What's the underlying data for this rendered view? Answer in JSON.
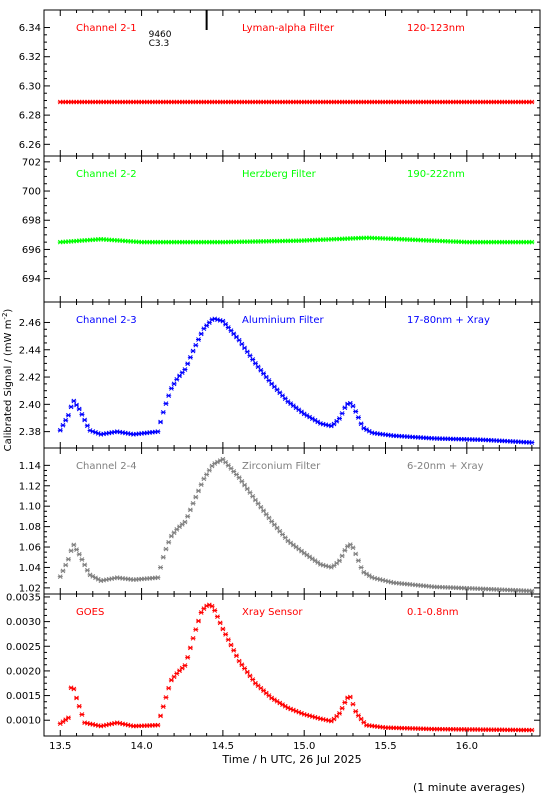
{
  "figure": {
    "ylabel_main": "Calibrated Signal / (mW m",
    "ylabel_sup": "-2",
    "ylabel_close": ")",
    "xlabel": "Time / h UTC, 26 Jul 2025",
    "footnote": "(1 minute averages)"
  },
  "chart_data": [
    {
      "type": "scatter",
      "label_left": "Channel 2-1",
      "label_center": "Lyman-alpha Filter",
      "label_right": "120-123nm",
      "color": "#ff0000",
      "ylim": [
        6.252,
        6.352
      ],
      "yticks": [
        6.26,
        6.28,
        6.3,
        6.32,
        6.34
      ],
      "yticklabels": [
        "6.26",
        "6.28",
        "6.30",
        "6.32",
        "6.34"
      ],
      "annotation": {
        "x": 14.4,
        "lines": [
          "9460",
          "C3.3"
        ]
      },
      "x": [
        13.5,
        16.4
      ],
      "y": [
        6.289,
        6.289
      ]
    },
    {
      "type": "scatter",
      "label_left": "Channel 2-2",
      "label_center": "Herzberg Filter",
      "label_right": "190-222nm",
      "color": "#00ff00",
      "ylim": [
        692.4,
        702.4
      ],
      "yticks": [
        694,
        696,
        698,
        700,
        702
      ],
      "yticklabels": [
        "694",
        "696",
        "698",
        "700",
        "702"
      ],
      "x": [
        13.5,
        13.75,
        14.0,
        14.5,
        14.97,
        15.39,
        16.0,
        16.4
      ],
      "y": [
        696.5,
        696.7,
        696.5,
        696.5,
        696.6,
        696.8,
        696.5,
        696.5
      ]
    },
    {
      "type": "scatter",
      "label_left": "Channel 2-3",
      "label_center": "Aluminium Filter",
      "label_right": "17-80nm + Xray",
      "color": "#0000ff",
      "ylim": [
        2.368,
        2.475
      ],
      "yticks": [
        2.38,
        2.4,
        2.42,
        2.44,
        2.46
      ],
      "yticklabels": [
        "2.38",
        "2.40",
        "2.42",
        "2.44",
        "2.46"
      ],
      "x": [
        13.5,
        13.55,
        13.58,
        13.62,
        13.68,
        13.75,
        13.85,
        13.95,
        14.1,
        14.14,
        14.18,
        14.22,
        14.27,
        14.32,
        14.38,
        14.44,
        14.5,
        14.6,
        14.7,
        14.8,
        14.9,
        15.0,
        15.1,
        15.17,
        15.22,
        15.26,
        15.29,
        15.32,
        15.36,
        15.42,
        15.55,
        15.8,
        16.1,
        16.4
      ],
      "y": [
        2.381,
        2.392,
        2.403,
        2.396,
        2.381,
        2.378,
        2.38,
        2.378,
        2.38,
        2.397,
        2.411,
        2.419,
        2.426,
        2.44,
        2.455,
        2.463,
        2.461,
        2.447,
        2.43,
        2.415,
        2.402,
        2.393,
        2.386,
        2.384,
        2.39,
        2.4,
        2.401,
        2.394,
        2.383,
        2.379,
        2.377,
        2.375,
        2.374,
        2.372
      ]
    },
    {
      "type": "scatter",
      "label_left": "Channel 2-4",
      "label_center": "Zirconium Filter",
      "label_right": "6-20nm + Xray",
      "color": "#808080",
      "ylim": [
        1.014,
        1.157
      ],
      "yticks": [
        1.02,
        1.04,
        1.06,
        1.08,
        1.1,
        1.12,
        1.14
      ],
      "yticklabels": [
        "1.02",
        "1.04",
        "1.06",
        "1.08",
        "1.10",
        "1.12",
        "1.14"
      ],
      "x": [
        13.5,
        13.55,
        13.58,
        13.62,
        13.68,
        13.75,
        13.85,
        13.95,
        14.1,
        14.14,
        14.18,
        14.22,
        14.27,
        14.32,
        14.38,
        14.44,
        14.5,
        14.6,
        14.7,
        14.8,
        14.9,
        15.0,
        15.1,
        15.17,
        15.22,
        15.26,
        15.29,
        15.32,
        15.36,
        15.42,
        15.55,
        15.8,
        16.1,
        16.4
      ],
      "y": [
        1.031,
        1.048,
        1.063,
        1.052,
        1.033,
        1.027,
        1.03,
        1.028,
        1.03,
        1.054,
        1.07,
        1.078,
        1.085,
        1.104,
        1.126,
        1.141,
        1.146,
        1.128,
        1.106,
        1.085,
        1.066,
        1.054,
        1.043,
        1.04,
        1.047,
        1.06,
        1.063,
        1.052,
        1.036,
        1.03,
        1.025,
        1.021,
        1.019,
        1.017
      ]
    },
    {
      "type": "scatter",
      "label_left": "GOES",
      "label_center": "Xray Sensor",
      "label_right": "0.1-0.8nm",
      "color": "#ff0000",
      "ylim": [
        0.00068,
        0.00356
      ],
      "yticks": [
        0.001,
        0.0015,
        0.002,
        0.0025,
        0.003,
        0.0035
      ],
      "yticklabels": [
        "0.0010",
        "0.0015",
        "0.0020",
        "0.0025",
        "0.0030",
        "0.0035"
      ],
      "x": [
        13.5,
        13.55,
        13.57,
        13.6,
        13.65,
        13.75,
        13.85,
        13.95,
        14.1,
        14.14,
        14.18,
        14.22,
        14.27,
        14.32,
        14.37,
        14.41,
        14.44,
        14.5,
        14.6,
        14.7,
        14.8,
        14.9,
        15.0,
        15.1,
        15.17,
        15.22,
        15.26,
        15.28,
        15.32,
        15.38,
        15.5,
        15.8,
        16.1,
        16.4
      ],
      "y": [
        0.00093,
        0.00105,
        0.00178,
        0.00145,
        0.00095,
        0.00088,
        0.00095,
        0.00088,
        0.0009,
        0.00135,
        0.0018,
        0.00196,
        0.00212,
        0.0027,
        0.00322,
        0.00335,
        0.0033,
        0.00285,
        0.0022,
        0.00175,
        0.00145,
        0.00125,
        0.00112,
        0.00103,
        0.00098,
        0.00115,
        0.00143,
        0.0015,
        0.00115,
        0.0009,
        0.00085,
        0.00082,
        0.00081,
        0.0008
      ]
    }
  ],
  "x_axis": {
    "xlim": [
      13.4,
      16.45
    ],
    "ticks": [
      13.5,
      14.0,
      14.5,
      15.0,
      15.5,
      16.0
    ],
    "ticklabels": [
      "13.5",
      "14.0",
      "14.5",
      "15.0",
      "15.5",
      "16.0"
    ]
  }
}
